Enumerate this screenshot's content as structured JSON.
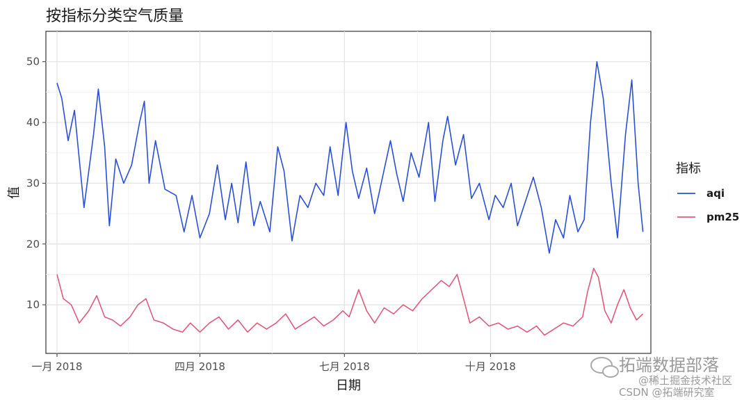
{
  "chart_data": {
    "type": "line",
    "title": "按指标分类空气质量",
    "xlabel": "日期",
    "ylabel": "值",
    "xlim": [
      "2017-12-25",
      "2019-01-10"
    ],
    "ylim": [
      2,
      55
    ],
    "x_ticks": [
      {
        "date": "2018-01-01",
        "label": "一月 2018"
      },
      {
        "date": "2018-04-01",
        "label": "四月 2018"
      },
      {
        "date": "2018-07-01",
        "label": "七月 2018"
      },
      {
        "date": "2018-10-01",
        "label": "十月 2018"
      }
    ],
    "y_ticks": [
      10,
      20,
      30,
      40,
      50
    ],
    "grid": true,
    "legend": {
      "title": "指标",
      "position": "right"
    },
    "series": [
      {
        "name": "aqi",
        "color": "#2a4fd6",
        "points": [
          [
            "2018-01-01",
            46.5
          ],
          [
            "2018-01-04",
            44
          ],
          [
            "2018-01-08",
            37
          ],
          [
            "2018-01-12",
            42
          ],
          [
            "2018-01-18",
            26
          ],
          [
            "2018-01-24",
            38
          ],
          [
            "2018-01-27",
            45.5
          ],
          [
            "2018-01-31",
            36
          ],
          [
            "2018-02-03",
            23
          ],
          [
            "2018-02-07",
            34
          ],
          [
            "2018-02-12",
            30
          ],
          [
            "2018-02-17",
            33
          ],
          [
            "2018-02-22",
            40
          ],
          [
            "2018-02-25",
            43.5
          ],
          [
            "2018-02-28",
            30
          ],
          [
            "2018-03-04",
            37
          ],
          [
            "2018-03-10",
            29
          ],
          [
            "2018-03-17",
            28
          ],
          [
            "2018-03-22",
            22
          ],
          [
            "2018-03-27",
            28
          ],
          [
            "2018-04-01",
            21
          ],
          [
            "2018-04-07",
            25
          ],
          [
            "2018-04-12",
            33
          ],
          [
            "2018-04-17",
            24
          ],
          [
            "2018-04-21",
            30
          ],
          [
            "2018-04-25",
            23.5
          ],
          [
            "2018-04-30",
            33.5
          ],
          [
            "2018-05-05",
            23
          ],
          [
            "2018-05-09",
            27
          ],
          [
            "2018-05-15",
            22
          ],
          [
            "2018-05-20",
            36
          ],
          [
            "2018-05-24",
            32
          ],
          [
            "2018-05-29",
            20.5
          ],
          [
            "2018-06-03",
            28
          ],
          [
            "2018-06-08",
            26
          ],
          [
            "2018-06-13",
            30
          ],
          [
            "2018-06-18",
            28
          ],
          [
            "2018-06-22",
            36
          ],
          [
            "2018-06-27",
            28
          ],
          [
            "2018-07-02",
            40
          ],
          [
            "2018-07-06",
            32
          ],
          [
            "2018-07-10",
            27.5
          ],
          [
            "2018-07-15",
            32.5
          ],
          [
            "2018-07-20",
            25
          ],
          [
            "2018-07-25",
            31
          ],
          [
            "2018-07-30",
            37
          ],
          [
            "2018-08-03",
            31.5
          ],
          [
            "2018-08-07",
            27
          ],
          [
            "2018-08-12",
            35
          ],
          [
            "2018-08-17",
            31
          ],
          [
            "2018-08-23",
            40
          ],
          [
            "2018-08-27",
            27
          ],
          [
            "2018-09-01",
            37
          ],
          [
            "2018-09-04",
            41
          ],
          [
            "2018-09-09",
            33
          ],
          [
            "2018-09-14",
            38
          ],
          [
            "2018-09-19",
            27.5
          ],
          [
            "2018-09-24",
            30
          ],
          [
            "2018-09-30",
            24
          ],
          [
            "2018-10-04",
            28
          ],
          [
            "2018-10-09",
            26
          ],
          [
            "2018-10-14",
            30
          ],
          [
            "2018-10-18",
            23
          ],
          [
            "2018-10-23",
            27
          ],
          [
            "2018-10-28",
            31
          ],
          [
            "2018-11-02",
            26
          ],
          [
            "2018-11-07",
            18.5
          ],
          [
            "2018-11-11",
            24
          ],
          [
            "2018-11-16",
            21
          ],
          [
            "2018-11-20",
            28
          ],
          [
            "2018-11-25",
            22
          ],
          [
            "2018-11-29",
            24
          ],
          [
            "2018-12-03",
            40
          ],
          [
            "2018-12-07",
            50
          ],
          [
            "2018-12-11",
            44
          ],
          [
            "2018-12-16",
            30
          ],
          [
            "2018-12-20",
            21
          ],
          [
            "2018-12-25",
            38
          ],
          [
            "2018-12-29",
            47
          ],
          [
            "2019-01-02",
            30
          ],
          [
            "2019-01-05",
            22
          ]
        ]
      },
      {
        "name": "pm25",
        "color": "#e05a7b",
        "points": [
          [
            "2018-01-01",
            15
          ],
          [
            "2018-01-05",
            11
          ],
          [
            "2018-01-10",
            10
          ],
          [
            "2018-01-15",
            7
          ],
          [
            "2018-01-21",
            9
          ],
          [
            "2018-01-26",
            11.5
          ],
          [
            "2018-01-31",
            8
          ],
          [
            "2018-02-05",
            7.5
          ],
          [
            "2018-02-10",
            6.5
          ],
          [
            "2018-02-16",
            8
          ],
          [
            "2018-02-21",
            10
          ],
          [
            "2018-02-26",
            11
          ],
          [
            "2018-03-03",
            7.5
          ],
          [
            "2018-03-09",
            7
          ],
          [
            "2018-03-15",
            6
          ],
          [
            "2018-03-21",
            5.5
          ],
          [
            "2018-03-26",
            7
          ],
          [
            "2018-04-01",
            5.5
          ],
          [
            "2018-04-07",
            7
          ],
          [
            "2018-04-13",
            8
          ],
          [
            "2018-04-19",
            6
          ],
          [
            "2018-04-25",
            7.5
          ],
          [
            "2018-05-01",
            5.5
          ],
          [
            "2018-05-07",
            7
          ],
          [
            "2018-05-13",
            6
          ],
          [
            "2018-05-19",
            7
          ],
          [
            "2018-05-25",
            8.5
          ],
          [
            "2018-05-31",
            6
          ],
          [
            "2018-06-06",
            7
          ],
          [
            "2018-06-12",
            8
          ],
          [
            "2018-06-18",
            6.5
          ],
          [
            "2018-06-24",
            7.5
          ],
          [
            "2018-06-30",
            9
          ],
          [
            "2018-07-04",
            8
          ],
          [
            "2018-07-10",
            12.5
          ],
          [
            "2018-07-15",
            9
          ],
          [
            "2018-07-20",
            7
          ],
          [
            "2018-07-26",
            9.5
          ],
          [
            "2018-08-01",
            8.5
          ],
          [
            "2018-08-07",
            10
          ],
          [
            "2018-08-13",
            9
          ],
          [
            "2018-08-19",
            11
          ],
          [
            "2018-08-25",
            12.5
          ],
          [
            "2018-08-31",
            14
          ],
          [
            "2018-09-05",
            13
          ],
          [
            "2018-09-10",
            15
          ],
          [
            "2018-09-14",
            11
          ],
          [
            "2018-09-18",
            7
          ],
          [
            "2018-09-24",
            8
          ],
          [
            "2018-09-30",
            6.5
          ],
          [
            "2018-10-06",
            7
          ],
          [
            "2018-10-12",
            6
          ],
          [
            "2018-10-18",
            6.5
          ],
          [
            "2018-10-24",
            5.5
          ],
          [
            "2018-10-30",
            6.5
          ],
          [
            "2018-11-04",
            5
          ],
          [
            "2018-11-10",
            6
          ],
          [
            "2018-11-16",
            7
          ],
          [
            "2018-11-22",
            6.5
          ],
          [
            "2018-11-28",
            8
          ],
          [
            "2018-12-01",
            12
          ],
          [
            "2018-12-05",
            16
          ],
          [
            "2018-12-08",
            14.5
          ],
          [
            "2018-12-12",
            9
          ],
          [
            "2018-12-16",
            7
          ],
          [
            "2018-12-20",
            10
          ],
          [
            "2018-12-24",
            12.5
          ],
          [
            "2018-12-28",
            9.5
          ],
          [
            "2019-01-01",
            7.5
          ],
          [
            "2019-01-05",
            8.5
          ]
        ]
      }
    ]
  },
  "watermark": {
    "line1": "拓端数据部落",
    "line2": "@稀土掘金技术社区",
    "line3": "CSDN @拓端研究室"
  }
}
